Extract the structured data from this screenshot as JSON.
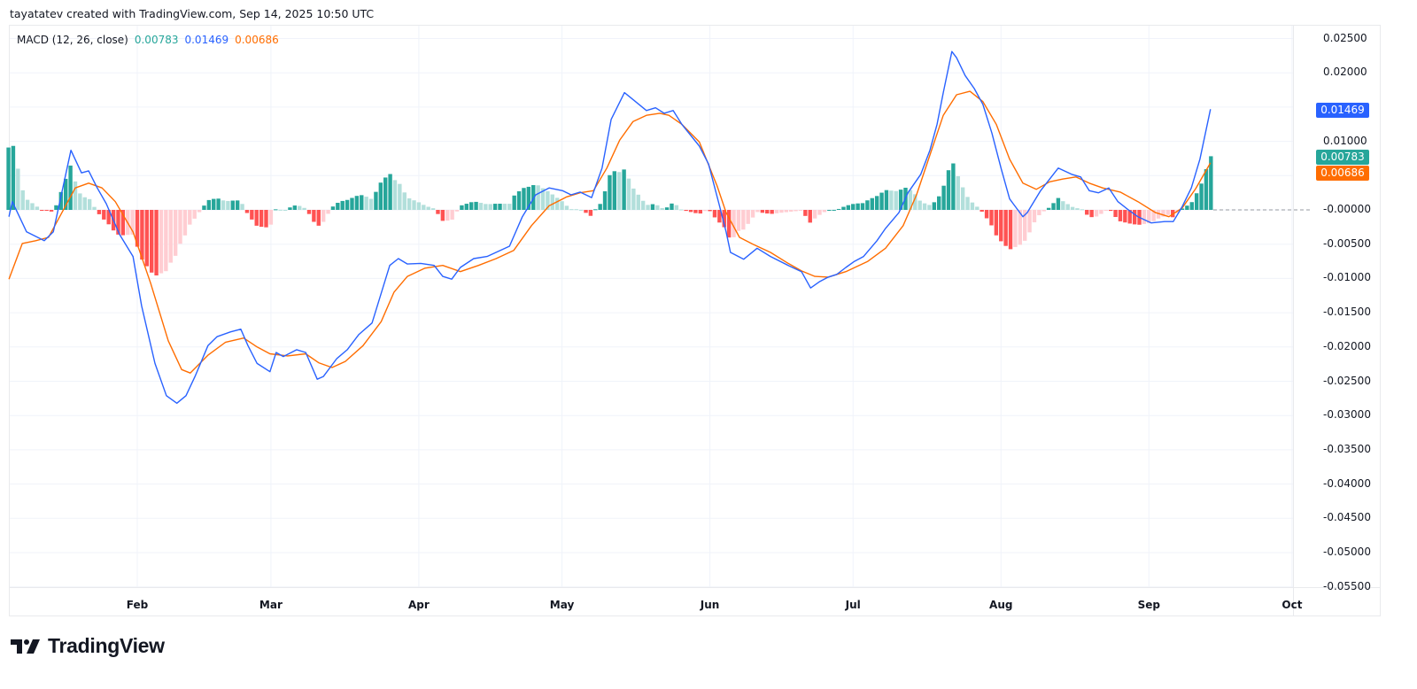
{
  "header": {
    "attribution": "tayatatev created with TradingView.com, Sep 14, 2025 10:50 UTC"
  },
  "legend": {
    "name": "MACD (12, 26, close)",
    "histogram_value": "0.00783",
    "macd_value": "0.01469",
    "signal_value": "0.00686"
  },
  "price_tags": {
    "macd": "0.01469",
    "histogram": "0.00783",
    "signal": "0.00686"
  },
  "colors": {
    "macd": "#2962ff",
    "signal": "#ff6d00",
    "hist_pos_strong": "#26a69a",
    "hist_pos_weak": "#b2dfdb",
    "hist_neg_strong": "#ff5252",
    "hist_neg_weak": "#ffcdd2",
    "grid": "#f0f3fa"
  },
  "brand": {
    "name": "TradingView"
  },
  "chart_data": {
    "type": "line",
    "title": "MACD (12, 26, close)",
    "xlabel": "",
    "ylabel": "",
    "x_axis": {
      "unit": "day_of_year_2025",
      "ticks": [
        {
          "label": "Feb",
          "day": 31
        },
        {
          "label": "Mar",
          "day": 59
        },
        {
          "label": "Apr",
          "day": 90
        },
        {
          "label": "May",
          "day": 120
        },
        {
          "label": "Jun",
          "day": 151
        },
        {
          "label": "Jul",
          "day": 181
        },
        {
          "label": "Aug",
          "day": 212
        },
        {
          "label": "Sep",
          "day": 243
        },
        {
          "label": "Oct",
          "day": 273
        }
      ]
    },
    "y_axis": {
      "ylim": [
        -0.055,
        0.025
      ],
      "ticks": [
        "0.02500",
        "0.02000",
        "0.01500",
        "0.01000",
        "0.00500",
        "-0.00000",
        "-0.00500",
        "-0.01000",
        "-0.01500",
        "-0.02000",
        "-0.02500",
        "-0.03000",
        "-0.03500",
        "-0.04000",
        "-0.04500",
        "-0.05000",
        "-0.05500"
      ],
      "tick_values": [
        0.025,
        0.02,
        0.015,
        0.01,
        0.005,
        0,
        -0.005,
        -0.01,
        -0.015,
        -0.02,
        -0.025,
        -0.03,
        -0.035,
        -0.04,
        -0.045,
        -0.05,
        -0.055
      ],
      "visible_ticks": [
        "0.02500",
        "0.02000",
        "0.01000",
        "-0.00000",
        "-0.00500",
        "-0.01000",
        "-0.01500",
        "-0.02000",
        "-0.02500",
        "-0.03000",
        "-0.03500",
        "-0.04000",
        "-0.04500",
        "-0.05000",
        "-0.05500"
      ]
    },
    "legend_position": "top-left",
    "grid": true,
    "series": [
      {
        "name": "MACD",
        "color": "#2962ff",
        "points": [
          [
            4.1,
            -0.001
          ],
          [
            4.8,
            0.0012
          ],
          [
            7.8,
            -0.0032
          ],
          [
            11.5,
            -0.0045
          ],
          [
            13.4,
            -0.0032
          ],
          [
            17.1,
            0.0087
          ],
          [
            19.3,
            0.0054
          ],
          [
            20.8,
            0.0057
          ],
          [
            22.6,
            0.0032
          ],
          [
            24.5,
            0.0009
          ],
          [
            27.3,
            -0.0036
          ],
          [
            30.1,
            -0.0068
          ],
          [
            31.9,
            -0.014
          ],
          [
            34.7,
            -0.0224
          ],
          [
            37.1,
            -0.0271
          ],
          [
            39.3,
            -0.0282
          ],
          [
            41.2,
            -0.0271
          ],
          [
            43.1,
            -0.0243
          ],
          [
            45.8,
            -0.0198
          ],
          [
            47.7,
            -0.0185
          ],
          [
            50.5,
            -0.0178
          ],
          [
            52.7,
            -0.0174
          ],
          [
            54.2,
            -0.0198
          ],
          [
            56.1,
            -0.0224
          ],
          [
            58.8,
            -0.0236
          ],
          [
            60.1,
            -0.0208
          ],
          [
            61.6,
            -0.0214
          ],
          [
            64.4,
            -0.0204
          ],
          [
            66.3,
            -0.0208
          ],
          [
            68.7,
            -0.0247
          ],
          [
            70.0,
            -0.0243
          ],
          [
            72.8,
            -0.0217
          ],
          [
            75.0,
            -0.0204
          ],
          [
            77.4,
            -0.0182
          ],
          [
            80.2,
            -0.0165
          ],
          [
            83.9,
            -0.0081
          ],
          [
            85.7,
            -0.0071
          ],
          [
            87.6,
            -0.0079
          ],
          [
            90.4,
            -0.0078
          ],
          [
            93.2,
            -0.0081
          ],
          [
            95.0,
            -0.0097
          ],
          [
            96.9,
            -0.0101
          ],
          [
            98.7,
            -0.0084
          ],
          [
            101.5,
            -0.0071
          ],
          [
            104.3,
            -0.0068
          ],
          [
            109.0,
            -0.0053
          ],
          [
            111.7,
            -0.001
          ],
          [
            114.5,
            0.0022
          ],
          [
            117.3,
            0.0032
          ],
          [
            120.1,
            0.0028
          ],
          [
            121.9,
            0.0022
          ],
          [
            123.8,
            0.0026
          ],
          [
            126.2,
            0.0018
          ],
          [
            128.4,
            0.0061
          ],
          [
            130.3,
            0.0132
          ],
          [
            133.1,
            0.0171
          ],
          [
            134.9,
            0.0161
          ],
          [
            137.7,
            0.0145
          ],
          [
            139.6,
            0.0149
          ],
          [
            141.4,
            0.0141
          ],
          [
            143.3,
            0.0145
          ],
          [
            145.1,
            0.0125
          ],
          [
            148.8,
            0.0093
          ],
          [
            150.7,
            0.0067
          ],
          [
            152.9,
            0.0009
          ],
          [
            154.4,
            -0.0032
          ],
          [
            155.3,
            -0.0062
          ],
          [
            158.1,
            -0.0072
          ],
          [
            160.9,
            -0.0056
          ],
          [
            163.7,
            -0.0068
          ],
          [
            167.4,
            -0.0081
          ],
          [
            170.2,
            -0.009
          ],
          [
            172.1,
            -0.0114
          ],
          [
            173.9,
            -0.0105
          ],
          [
            175.8,
            -0.0098
          ],
          [
            177.6,
            -0.0094
          ],
          [
            179.5,
            -0.0084
          ],
          [
            181.3,
            -0.0075
          ],
          [
            183.2,
            -0.0068
          ],
          [
            186.0,
            -0.0045
          ],
          [
            187.8,
            -0.0027
          ],
          [
            190.6,
            -0.0004
          ],
          [
            192.5,
            0.0025
          ],
          [
            195.2,
            0.0052
          ],
          [
            197.1,
            0.0087
          ],
          [
            198.6,
            0.0125
          ],
          [
            199.9,
            0.0171
          ],
          [
            201.7,
            0.0231
          ],
          [
            202.7,
            0.0222
          ],
          [
            204.5,
            0.0196
          ],
          [
            206.4,
            0.0177
          ],
          [
            208.2,
            0.0154
          ],
          [
            210.1,
            0.0112
          ],
          [
            212.0,
            0.0061
          ],
          [
            213.8,
            0.0016
          ],
          [
            216.6,
            -0.001
          ],
          [
            217.5,
            -0.0004
          ],
          [
            220.3,
            0.0028
          ],
          [
            224.0,
            0.0061
          ],
          [
            226.8,
            0.0052
          ],
          [
            228.7,
            0.0048
          ],
          [
            230.5,
            0.0028
          ],
          [
            232.4,
            0.0025
          ],
          [
            234.6,
            0.0032
          ],
          [
            236.5,
            0.0012
          ],
          [
            238.9,
            -0.0001
          ],
          [
            240.7,
            -0.001
          ],
          [
            243.5,
            -0.0019
          ],
          [
            246.3,
            -0.0017
          ],
          [
            248.1,
            -0.0017
          ],
          [
            250.0,
            0.0005
          ],
          [
            251.9,
            0.0032
          ],
          [
            253.7,
            0.0074
          ],
          [
            255.9,
            0.01469
          ]
        ]
      },
      {
        "name": "Signal",
        "color": "#ff6d00",
        "points": [
          [
            4.1,
            -0.0101
          ],
          [
            6.9,
            -0.0049
          ],
          [
            9.7,
            -0.0045
          ],
          [
            12.4,
            -0.004
          ],
          [
            15.2,
            -0.0004
          ],
          [
            18.0,
            0.0032
          ],
          [
            20.8,
            0.0039
          ],
          [
            23.6,
            0.0032
          ],
          [
            26.4,
            0.0012
          ],
          [
            30.1,
            -0.0032
          ],
          [
            33.8,
            -0.0107
          ],
          [
            37.5,
            -0.0191
          ],
          [
            40.3,
            -0.0233
          ],
          [
            42.1,
            -0.0238
          ],
          [
            45.8,
            -0.0212
          ],
          [
            49.5,
            -0.0193
          ],
          [
            53.3,
            -0.0187
          ],
          [
            56.1,
            -0.02
          ],
          [
            58.8,
            -0.021
          ],
          [
            62.5,
            -0.0213
          ],
          [
            66.3,
            -0.021
          ],
          [
            69.0,
            -0.0223
          ],
          [
            71.8,
            -0.023
          ],
          [
            74.6,
            -0.0221
          ],
          [
            78.3,
            -0.0198
          ],
          [
            82.1,
            -0.0163
          ],
          [
            84.8,
            -0.012
          ],
          [
            87.6,
            -0.0097
          ],
          [
            91.3,
            -0.0085
          ],
          [
            95.0,
            -0.0081
          ],
          [
            98.7,
            -0.009
          ],
          [
            102.5,
            -0.0081
          ],
          [
            106.2,
            -0.0071
          ],
          [
            109.9,
            -0.0059
          ],
          [
            113.6,
            -0.0023
          ],
          [
            117.3,
            0.0006
          ],
          [
            121.0,
            0.0019
          ],
          [
            123.8,
            0.0025
          ],
          [
            126.6,
            0.0028
          ],
          [
            129.4,
            0.0061
          ],
          [
            132.1,
            0.0102
          ],
          [
            134.9,
            0.0129
          ],
          [
            137.7,
            0.0138
          ],
          [
            140.5,
            0.0141
          ],
          [
            142.4,
            0.0138
          ],
          [
            145.1,
            0.0125
          ],
          [
            148.8,
            0.0099
          ],
          [
            152.5,
            0.0035
          ],
          [
            154.4,
            -0.0004
          ],
          [
            157.2,
            -0.004
          ],
          [
            160.0,
            -0.005
          ],
          [
            163.7,
            -0.0062
          ],
          [
            167.4,
            -0.0078
          ],
          [
            170.2,
            -0.0089
          ],
          [
            173.0,
            -0.0097
          ],
          [
            175.8,
            -0.0098
          ],
          [
            179.5,
            -0.009
          ],
          [
            184.1,
            -0.0075
          ],
          [
            187.8,
            -0.0056
          ],
          [
            191.5,
            -0.0023
          ],
          [
            194.3,
            0.0022
          ],
          [
            197.1,
            0.008
          ],
          [
            199.9,
            0.0138
          ],
          [
            202.7,
            0.0168
          ],
          [
            205.5,
            0.0173
          ],
          [
            208.2,
            0.0158
          ],
          [
            211.0,
            0.0125
          ],
          [
            213.8,
            0.0074
          ],
          [
            216.6,
            0.0039
          ],
          [
            219.4,
            0.003
          ],
          [
            222.2,
            0.0041
          ],
          [
            224.9,
            0.0045
          ],
          [
            227.7,
            0.0048
          ],
          [
            230.5,
            0.0039
          ],
          [
            233.3,
            0.0032
          ],
          [
            237.0,
            0.0026
          ],
          [
            240.7,
            0.0012
          ],
          [
            244.4,
            -0.0004
          ],
          [
            247.2,
            -0.001
          ],
          [
            250.0,
            0.0003
          ],
          [
            252.8,
            0.0031
          ],
          [
            255.9,
            0.00686
          ]
        ]
      },
      {
        "name": "Histogram",
        "note": "MACD minus Signal, daily bars",
        "last_value": 0.00783
      }
    ]
  }
}
